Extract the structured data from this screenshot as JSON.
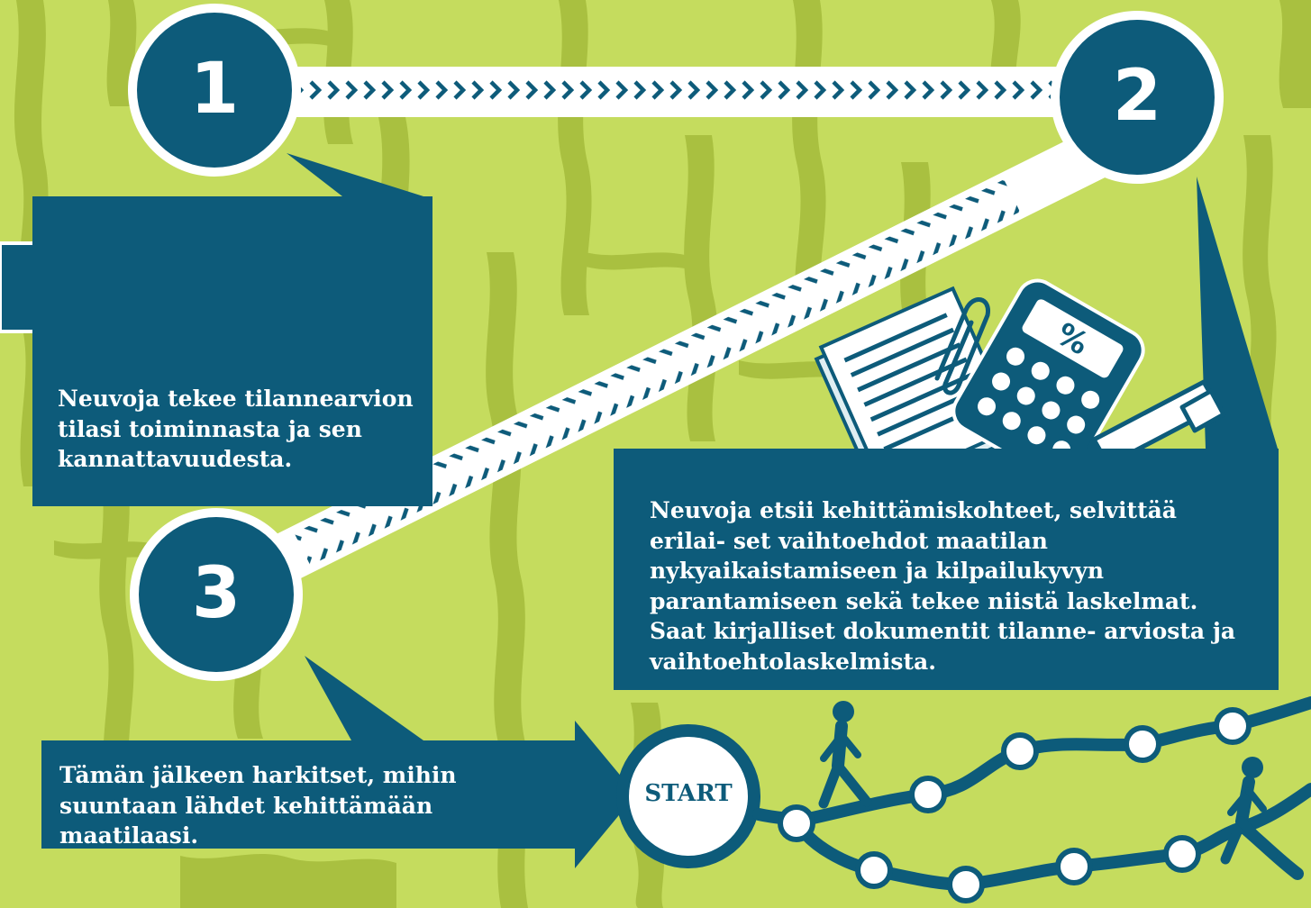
{
  "colors": {
    "background": "#c5dc5e",
    "background_pattern": "#a9c040",
    "primary": "#0d5b7a",
    "white": "#ffffff"
  },
  "steps": [
    {
      "number": "1",
      "text": "Neuvoja tekee tilannearvion tilasi toiminnasta ja sen kannattavuudesta."
    },
    {
      "number": "2",
      "text": "Neuvoja etsii kehittämiskohteet, selvittää erilai- set vaihtoehdot maatilan nykyaikaistamiseen ja kilpailukyvyn parantamiseen sekä tekee niistä laskelmat. Saat kirjalliset dokumentit tilanne- arviosta ja vaihtoehtolaskelmista."
    },
    {
      "number": "3",
      "text": "Tämän jälkeen harkitset, mihin suuntaan lähdet kehittämään maatilaasi."
    }
  ],
  "start": {
    "label": "START"
  },
  "calculator_symbol": "%",
  "icons": [
    "hand-pointing-chart-icon",
    "chart-line-icon",
    "papers-icon",
    "paperclip-icon",
    "calculator-icon",
    "pen-icon",
    "walking-person-icon",
    "running-person-icon"
  ]
}
